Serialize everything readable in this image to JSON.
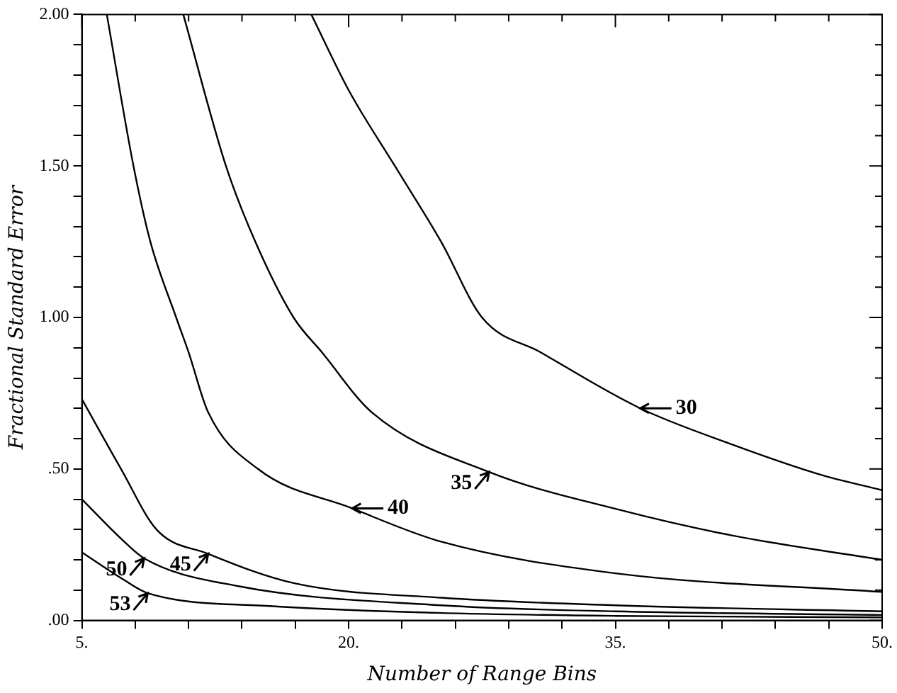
{
  "chart_data": {
    "type": "line",
    "xlabel": "Number of Range Bins",
    "ylabel": "Fractional Standard Error",
    "xlim": [
      5,
      50
    ],
    "ylim": [
      0,
      2
    ],
    "xticks": [
      {
        "value": 5,
        "label": "5."
      },
      {
        "value": 8,
        "label": null
      },
      {
        "value": 11,
        "label": null
      },
      {
        "value": 14,
        "label": null
      },
      {
        "value": 17,
        "label": null
      },
      {
        "value": 20,
        "label": "20."
      },
      {
        "value": 23,
        "label": null
      },
      {
        "value": 26,
        "label": null
      },
      {
        "value": 29,
        "label": null
      },
      {
        "value": 32,
        "label": null
      },
      {
        "value": 35,
        "label": "35."
      },
      {
        "value": 38,
        "label": null
      },
      {
        "value": 41,
        "label": null
      },
      {
        "value": 44,
        "label": null
      },
      {
        "value": 47,
        "label": null
      },
      {
        "value": 50,
        "label": "50."
      }
    ],
    "yticks": [
      {
        "value": 0,
        "label": ".00"
      },
      {
        "value": 0.1,
        "label": null
      },
      {
        "value": 0.2,
        "label": null
      },
      {
        "value": 0.3,
        "label": null
      },
      {
        "value": 0.4,
        "label": null
      },
      {
        "value": 0.5,
        "label": ".50"
      },
      {
        "value": 0.6,
        "label": null
      },
      {
        "value": 0.7,
        "label": null
      },
      {
        "value": 0.8,
        "label": null
      },
      {
        "value": 0.9,
        "label": null
      },
      {
        "value": 1,
        "label": "1.00"
      },
      {
        "value": 1.1,
        "label": null
      },
      {
        "value": 1.2,
        "label": null
      },
      {
        "value": 1.3,
        "label": null
      },
      {
        "value": 1.4,
        "label": null
      },
      {
        "value": 1.5,
        "label": "1.50"
      },
      {
        "value": 1.6,
        "label": null
      },
      {
        "value": 1.7,
        "label": null
      },
      {
        "value": 1.8,
        "label": null
      },
      {
        "value": 1.9,
        "label": null
      },
      {
        "value": 2,
        "label": "2.00"
      }
    ],
    "grid": false,
    "legend": false,
    "marker": "none",
    "line_style": "solid",
    "series": [
      {
        "color": "#000000",
        "x": [
          17.9,
          20,
          22.6,
          25.2,
          27.5,
          30.8,
          36.4,
          41.6,
          46.6,
          50
        ],
        "values": [
          2.0,
          1.75,
          1.5,
          1.25,
          1.0,
          0.885,
          0.7,
          0.58,
          0.48,
          0.43
        ]
      },
      {
        "color": "#000000",
        "x": [
          10.7,
          13.1,
          14.75,
          16.9,
          18.5,
          21.3,
          27.9,
          35.1,
          41.6,
          50
        ],
        "values": [
          2.0,
          1.5,
          1.25,
          1.0,
          0.885,
          0.687,
          0.49,
          0.367,
          0.28,
          0.2
        ]
      },
      {
        "color": "#000000",
        "x": [
          6.4,
          7.9,
          8.85,
          10.3,
          11.0,
          12.1,
          14.9,
          20.2,
          25.2,
          35.1,
          50
        ],
        "values": [
          2.0,
          1.5,
          1.25,
          1.0,
          0.885,
          0.687,
          0.5,
          0.37,
          0.26,
          0.155,
          0.094
        ]
      },
      {
        "color": "#000000",
        "x": [
          5,
          7.2,
          9.2,
          12.1,
          17,
          25.2,
          35,
          50
        ],
        "values": [
          0.73,
          0.5,
          0.3,
          0.22,
          0.122,
          0.075,
          0.05,
          0.03
        ]
      },
      {
        "color": "#000000",
        "x": [
          5,
          7.2,
          8.5,
          13.8,
          25.2,
          35,
          50
        ],
        "values": [
          0.4,
          0.27,
          0.205,
          0.113,
          0.05,
          0.03,
          0.018
        ]
      },
      {
        "color": "#000000",
        "x": [
          5,
          7.2,
          8.7,
          15.7,
          25,
          35,
          50
        ],
        "values": [
          0.225,
          0.14,
          0.09,
          0.047,
          0.025,
          0.015,
          0.01
        ]
      }
    ],
    "annotations": [
      {
        "text": "30",
        "x": 36.4,
        "y": 0.7
      },
      {
        "text": "35",
        "x": 27.9,
        "y": 0.49
      },
      {
        "text": "40",
        "x": 20.2,
        "y": 0.37
      },
      {
        "text": "45",
        "x": 12.1,
        "y": 0.22
      },
      {
        "text": "50",
        "x": 8.5,
        "y": 0.205
      },
      {
        "text": "53",
        "x": 8.7,
        "y": 0.09
      }
    ]
  }
}
